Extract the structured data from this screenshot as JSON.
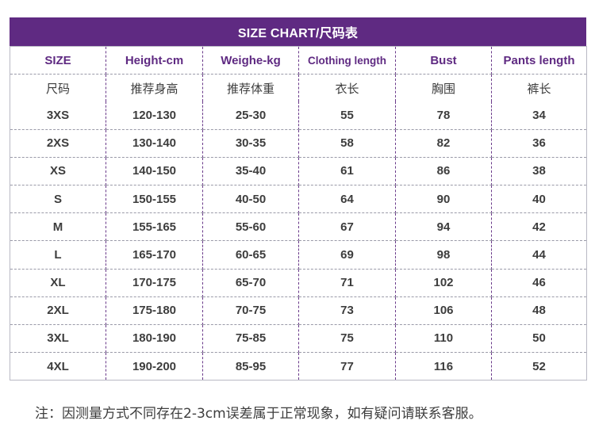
{
  "title": "SIZE CHART/尺码表",
  "headers_en": [
    "SIZE",
    "Height-cm",
    "Weighe-kg",
    "Clothing length",
    "Bust",
    "Pants length"
  ],
  "headers_cn": [
    "尺码",
    "推荐身高",
    "推荐体重",
    "衣长",
    "胸围",
    "裤长"
  ],
  "rows": [
    [
      "3XS",
      "120-130",
      "25-30",
      "55",
      "78",
      "34"
    ],
    [
      "2XS",
      "130-140",
      "30-35",
      "58",
      "82",
      "36"
    ],
    [
      "XS",
      "140-150",
      "35-40",
      "61",
      "86",
      "38"
    ],
    [
      "S",
      "150-155",
      "40-50",
      "64",
      "90",
      "40"
    ],
    [
      "M",
      "155-165",
      "55-60",
      "67",
      "94",
      "42"
    ],
    [
      "L",
      "165-170",
      "60-65",
      "69",
      "98",
      "44"
    ],
    [
      "XL",
      "170-175",
      "65-70",
      "71",
      "102",
      "46"
    ],
    [
      "2XL",
      "175-180",
      "70-75",
      "73",
      "106",
      "48"
    ],
    [
      "3XL",
      "180-190",
      "75-85",
      "75",
      "110",
      "50"
    ],
    [
      "4XL",
      "190-200",
      "85-95",
      "77",
      "116",
      "52"
    ]
  ],
  "note": "注：因测量方式不同存在2-3cm误差属于正常现象，如有疑问请联系客服。",
  "colors": {
    "accent": "#5f2a82",
    "text": "#3d3d3d"
  }
}
